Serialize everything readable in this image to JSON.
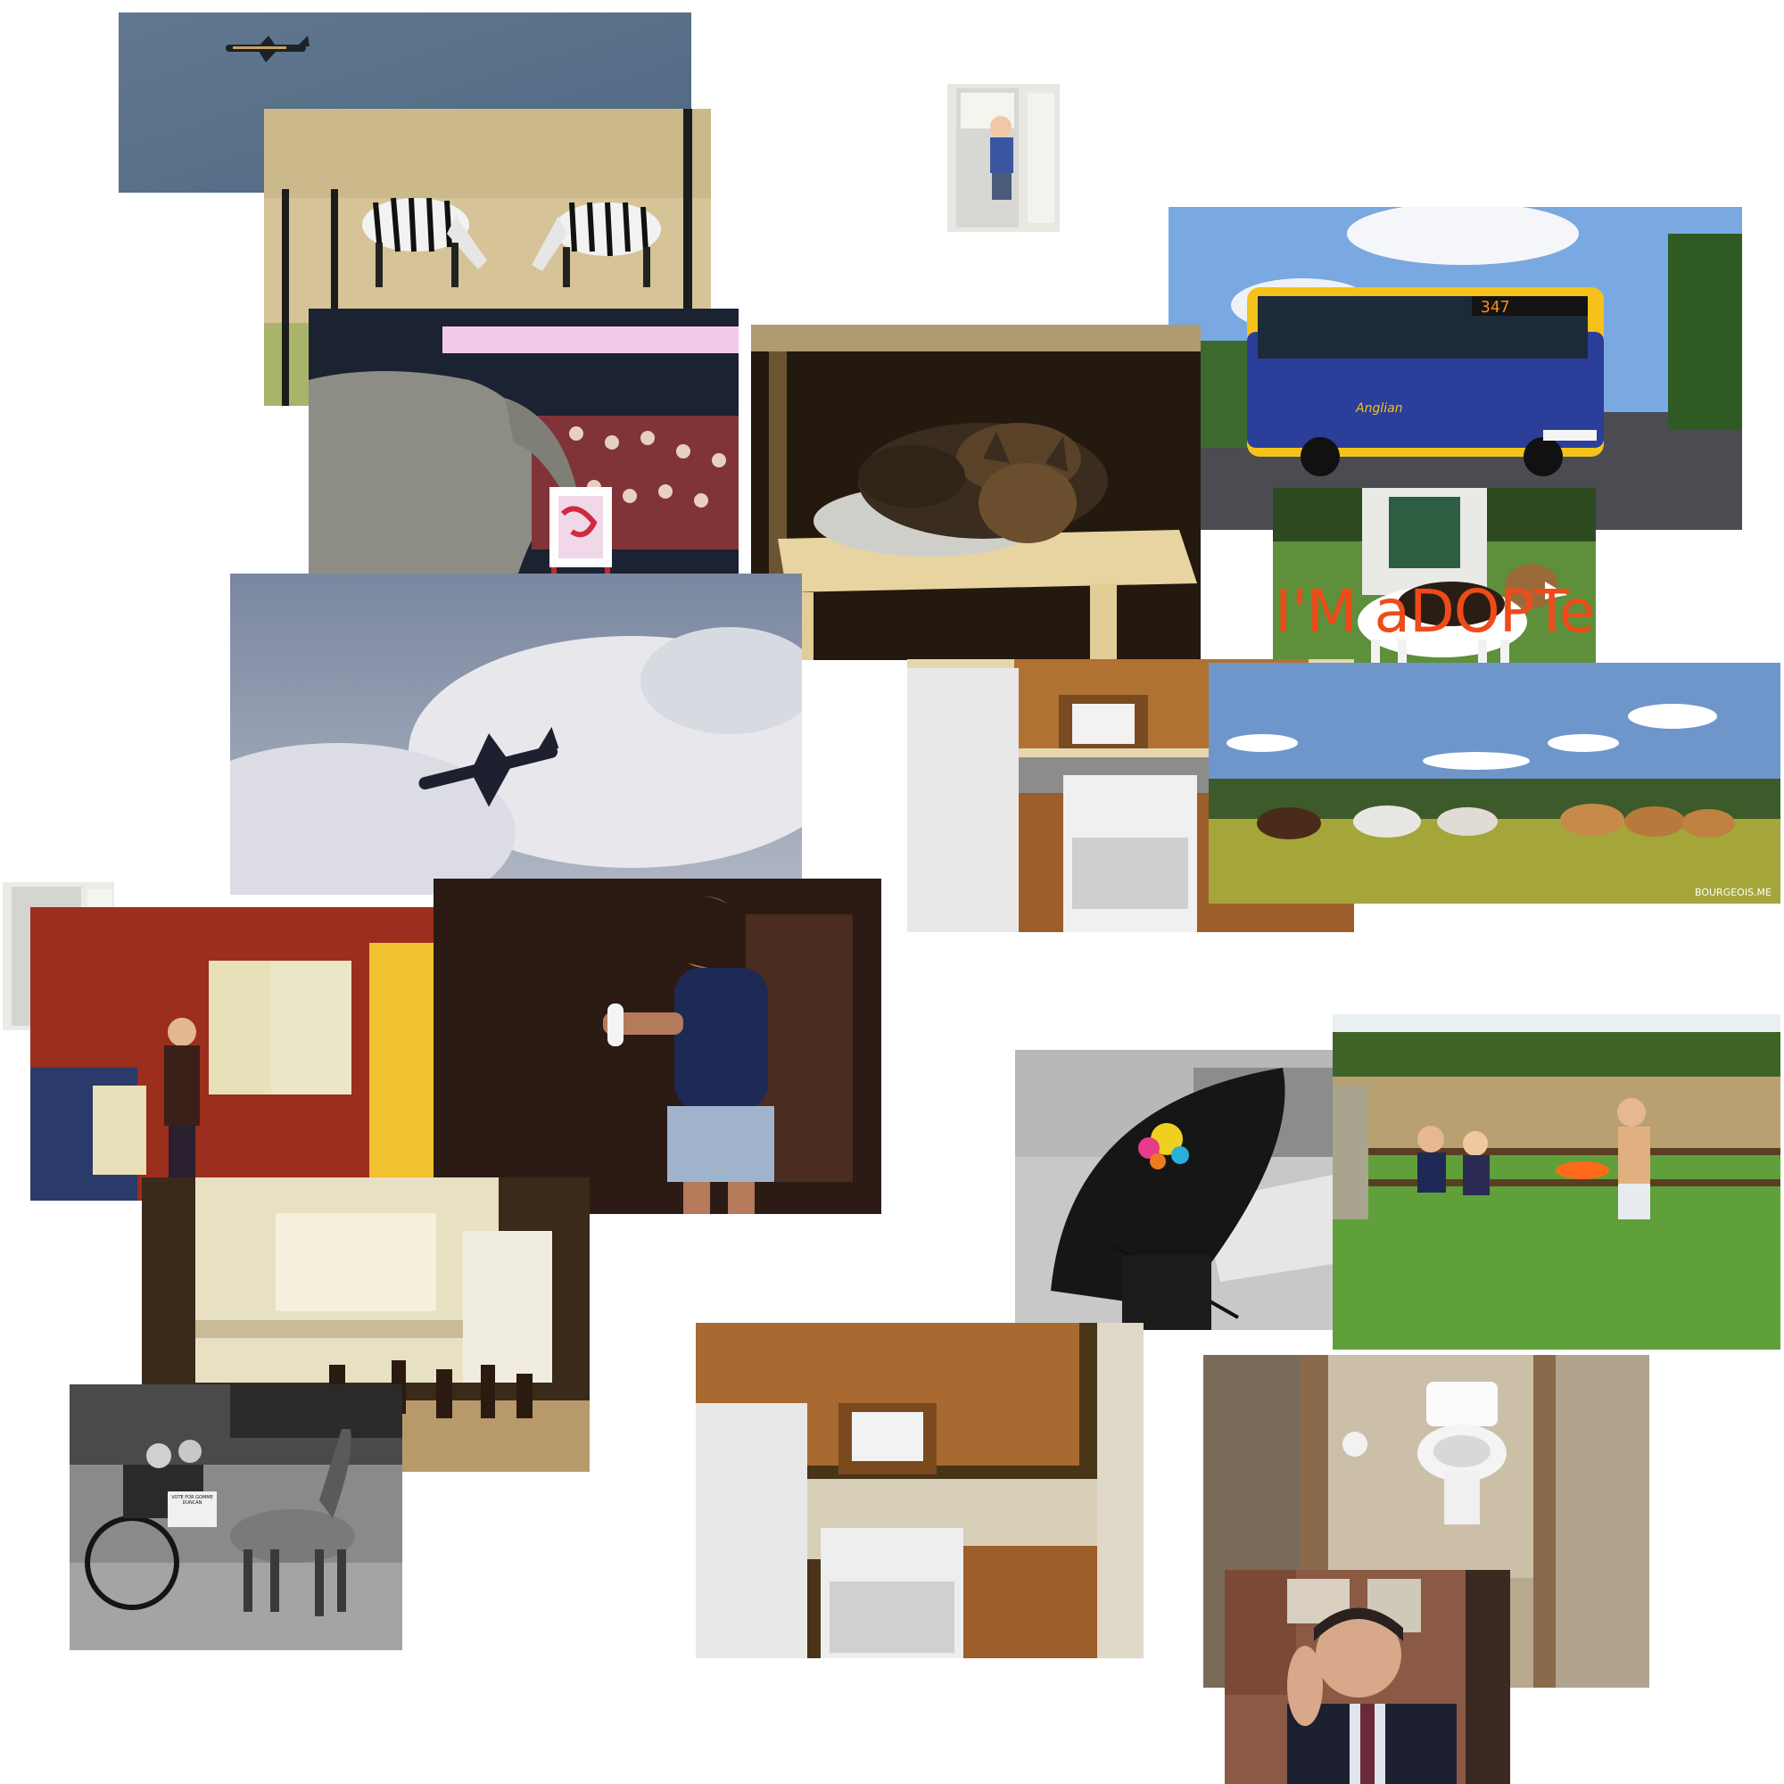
{
  "collage": {
    "background_color": "#ffffff",
    "photos": [
      {
        "subject": "airliner in clear sky",
        "colors": [
          "#5c7390",
          "#7a8ea5"
        ]
      },
      {
        "subject": "two zebras grazing behind fence",
        "colors": [
          "#d9c69a",
          "#2b2b2b"
        ]
      },
      {
        "subject": "toddler in open refrigerator (small)",
        "colors": [
          "#e8e6e2",
          "#9aa2b0"
        ]
      },
      {
        "subject": "double-decker bus",
        "colors": [
          "#2a3e9a",
          "#f4c21a"
        ],
        "text": {
          "route": "347",
          "destination": "Anglian"
        }
      },
      {
        "subject": "circus elephant painting at easel",
        "colors": [
          "#8c8c86",
          "#c23a3a"
        ]
      },
      {
        "subject": "cat sleeping on chair cushion",
        "colors": [
          "#2b1d10",
          "#e9d8a8"
        ]
      },
      {
        "subject": "adopted beagle dog on grass",
        "colors": [
          "#5e8f3a",
          "#ffffff"
        ],
        "text": {
          "caption": "I'M aDOPTeD"
        }
      },
      {
        "subject": "airliner among clouds",
        "colors": [
          "#8b96ab",
          "#e8e8ec"
        ]
      },
      {
        "subject": "kitchen with fridge and stove",
        "colors": [
          "#b07232",
          "#eeeeee"
        ]
      },
      {
        "subject": "horses grazing in meadow",
        "colors": [
          "#7ea0cf",
          "#a9aa3c"
        ],
        "text": {
          "watermark": "BOURGEOIS.ME"
        }
      },
      {
        "subject": "toddler in open refrigerator",
        "colors": [
          "#e8e6e2",
          "#4a5b7a"
        ]
      },
      {
        "subject": "woman at wall-mounted fridge exhibit",
        "colors": [
          "#9b2e1c",
          "#f0c230"
        ]
      },
      {
        "subject": "young woman holding game controller",
        "colors": [
          "#2a1a14",
          "#1d2a55"
        ]
      },
      {
        "subject": "person with umbrella black and white",
        "colors": [
          "#cfcfcf",
          "#1a1a1a"
        ]
      },
      {
        "subject": "children playing frisbee on lawn",
        "colors": [
          "#5fa03a",
          "#9a8a5e"
        ]
      },
      {
        "subject": "white kitchen with nativity figures",
        "colors": [
          "#e8e0c2",
          "#3a2a1a"
        ]
      },
      {
        "subject": "horse and cart black and white",
        "colors": [
          "#8a8a8a",
          "#1e1e1e"
        ],
        "text": {
          "sign": "VOTE FOR GOMME DUNCAN"
        }
      },
      {
        "subject": "kitchen with wooden cabinets",
        "colors": [
          "#a86a30",
          "#eaeaea"
        ]
      },
      {
        "subject": "bathroom toilet through doorway",
        "colors": [
          "#cbbfa8",
          "#ffffff"
        ]
      },
      {
        "subject": "man resting head on hand webcam",
        "colors": [
          "#7a4a36",
          "#1c2030"
        ]
      }
    ]
  }
}
